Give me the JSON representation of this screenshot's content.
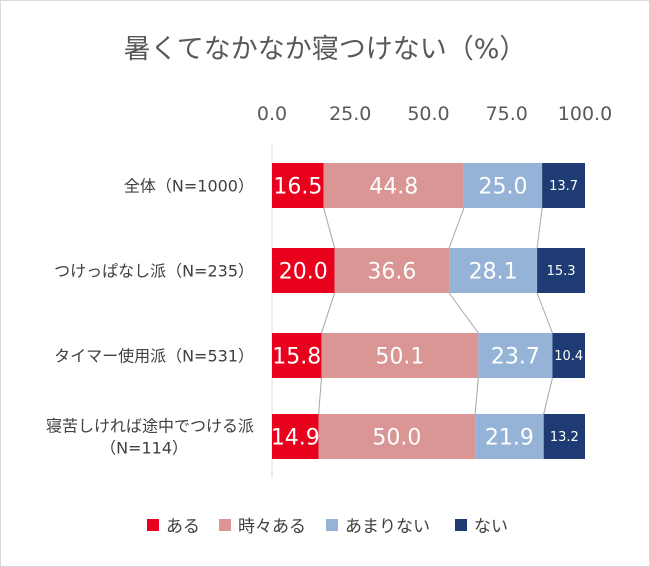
{
  "chart_data": {
    "type": "bar",
    "orientation": "horizontal",
    "stacked": "100%",
    "title": "暑くてなかなか寝つけない（%）",
    "x_ticks": [
      "0.0",
      "25.0",
      "50.0",
      "75.0",
      "100.0"
    ],
    "xlim": [
      0,
      100
    ],
    "grid": false,
    "legend_position": "bottom",
    "categories": [
      [
        "全体（N=1000）"
      ],
      [
        "つけっぱなし派（N=235）"
      ],
      [
        "タイマー使用派（N=531）"
      ],
      [
        "寝苦しければ途中でつける派",
        "（N=114）"
      ]
    ],
    "series": [
      {
        "name": "ある",
        "color": "#e8001c",
        "values": [
          16.5,
          20.0,
          15.8,
          14.9
        ]
      },
      {
        "name": "時々ある",
        "color": "#d99694",
        "values": [
          44.8,
          36.6,
          50.1,
          50.0
        ]
      },
      {
        "name": "あまりない",
        "color": "#95b3d7",
        "values": [
          25.0,
          28.1,
          23.7,
          21.9
        ]
      },
      {
        "name": "ない",
        "color": "#1f3b73",
        "values": [
          13.7,
          15.3,
          10.4,
          13.2
        ]
      }
    ]
  }
}
